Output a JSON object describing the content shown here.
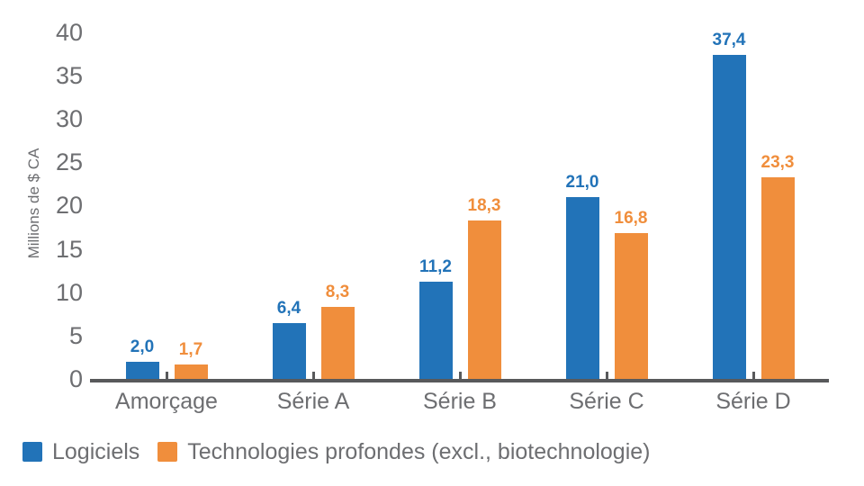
{
  "chart_data": {
    "type": "bar",
    "title": "",
    "ylabel": "Millions de $ CA",
    "xlabel": "",
    "categories": [
      "Amorçage",
      "Série A",
      "Série B",
      "Série C",
      "Série D"
    ],
    "series": [
      {
        "name": "Logiciels",
        "color": "#2273B8",
        "values": [
          2.0,
          6.4,
          11.2,
          21.0,
          37.4
        ],
        "labels": [
          "2,0",
          "6,4",
          "11,2",
          "21,0",
          "37,4"
        ]
      },
      {
        "name": "Technologies profondes (excl., biotechnologie)",
        "color": "#F08E3C",
        "values": [
          1.7,
          8.3,
          18.3,
          16.8,
          23.3
        ],
        "labels": [
          "1,7",
          "8,3",
          "18,3",
          "16,8",
          "23,3"
        ]
      }
    ],
    "yticks": [
      0,
      5,
      10,
      15,
      20,
      25,
      30,
      35,
      40
    ],
    "ylim": [
      0,
      40
    ],
    "grid": false,
    "legend_position": "bottom"
  },
  "colors": {
    "axis": "#58595B",
    "text": "#6D6E71",
    "background": "#FFFFFF"
  }
}
